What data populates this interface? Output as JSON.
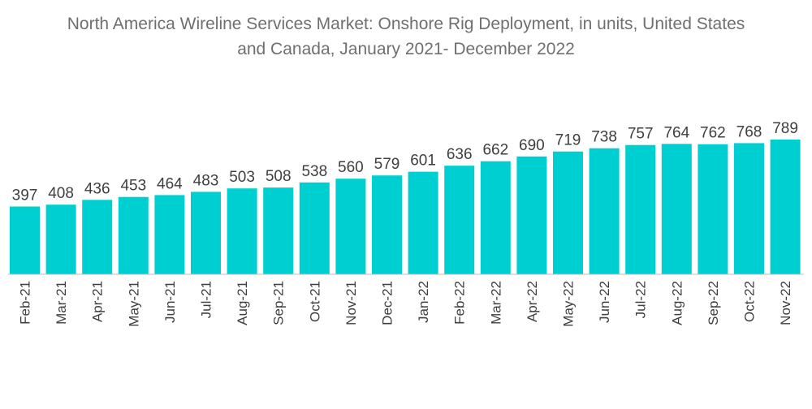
{
  "chart_data": {
    "type": "bar",
    "title_lines": [
      "North America Wireline Services Market: Onshore Rig Deployment, in units, United States",
      "and Canada, January 2021- December 2022"
    ],
    "categories": [
      "Feb-21",
      "Mar-21",
      "Apr-21",
      "May-21",
      "Jun-21",
      "Jul-21",
      "Aug-21",
      "Sep-21",
      "Oct-21",
      "Nov-21",
      "Dec-21",
      "Jan-22",
      "Feb-22",
      "Mar-22",
      "Apr-22",
      "May-22",
      "Jun-22",
      "Jul-22",
      "Aug-22",
      "Sep-22",
      "Oct-22",
      "Nov-22"
    ],
    "values": [
      397,
      408,
      436,
      453,
      464,
      483,
      503,
      508,
      538,
      560,
      579,
      601,
      636,
      662,
      690,
      719,
      738,
      757,
      764,
      762,
      768,
      789
    ],
    "xlabel": "",
    "ylabel": "",
    "ylim": [
      0,
      789
    ],
    "grid": false,
    "bar_color": "#00cfd1",
    "axis_color": "#bdbdbd"
  }
}
